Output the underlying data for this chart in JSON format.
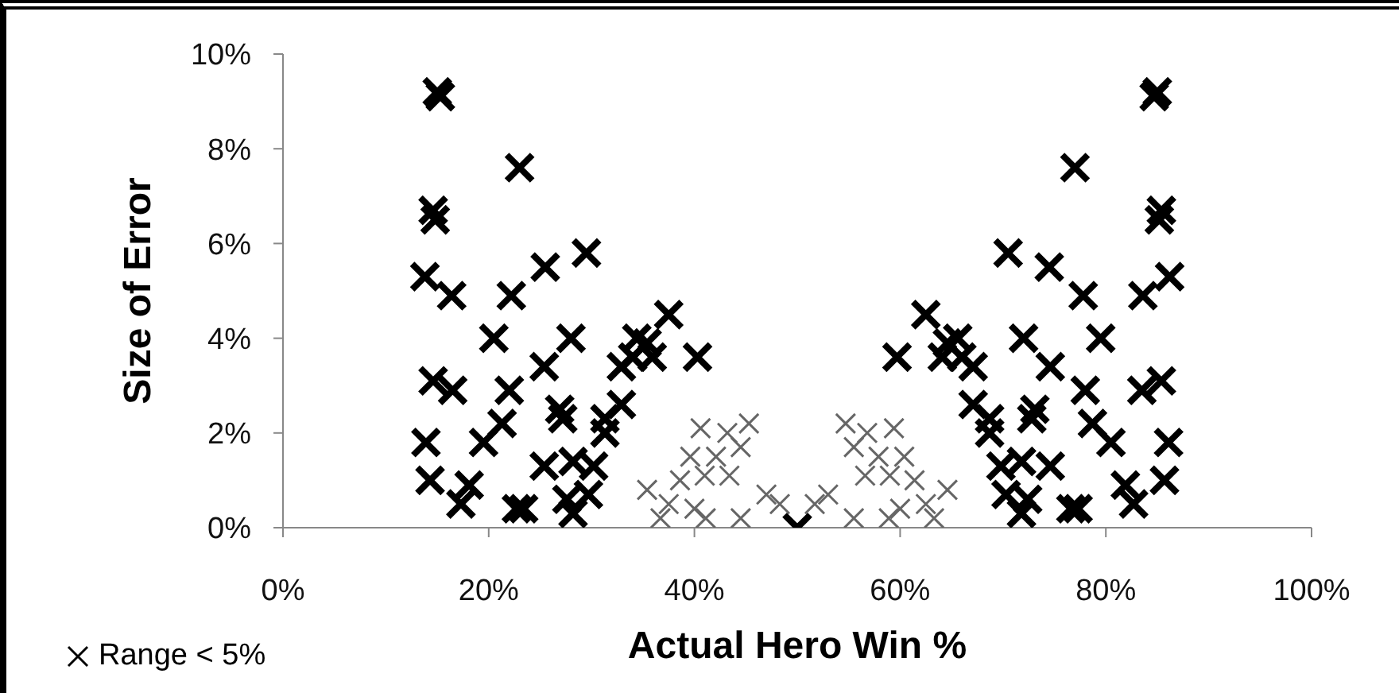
{
  "chart_data": {
    "type": "scatter",
    "xlabel": "Actual Hero Win %",
    "ylabel": "Size of Error",
    "xlim": [
      0,
      100
    ],
    "ylim": [
      0,
      10
    ],
    "xticks": [
      {
        "value": 0,
        "label": "0%"
      },
      {
        "value": 20,
        "label": "20%"
      },
      {
        "value": 40,
        "label": "40%"
      },
      {
        "value": 60,
        "label": "60%"
      },
      {
        "value": 80,
        "label": "80%"
      },
      {
        "value": 100,
        "label": "100%"
      }
    ],
    "yticks": [
      {
        "value": 0,
        "label": "0%"
      },
      {
        "value": 2,
        "label": "2%"
      },
      {
        "value": 4,
        "label": "4%"
      },
      {
        "value": 6,
        "label": "6%"
      },
      {
        "value": 8,
        "label": "8%"
      },
      {
        "value": 10,
        "label": "10%"
      }
    ],
    "grid": false,
    "legend": "bottom left",
    "marker": "cross",
    "series": [
      {
        "color": "#666666",
        "x": [
          40.6,
          43.2,
          45.3,
          39.6,
          42.1,
          44.5,
          38.6,
          41,
          43.4,
          35.4,
          37.5,
          40,
          47,
          48.3,
          36.7,
          41.1,
          44.5,
          59.4,
          56.8,
          54.7,
          60.4,
          57.9,
          55.5,
          61.4,
          59,
          56.6,
          64.6,
          62.5,
          60,
          53,
          51.7,
          63.3,
          58.9,
          55.5
        ],
        "values": [
          2.1,
          2.0,
          2.2,
          1.5,
          1.5,
          1.7,
          1.0,
          1.1,
          1.1,
          0.8,
          0.5,
          0.4,
          0.7,
          0.5,
          0.2,
          0.2,
          0.2,
          2.1,
          2.0,
          2.2,
          1.5,
          1.5,
          1.7,
          1.0,
          1.1,
          1.1,
          0.8,
          0.5,
          0.4,
          0.7,
          0.5,
          0.2,
          0.2,
          0.2
        ]
      },
      {
        "name": "Range < 5%",
        "color": "#000000",
        "x": [
          15,
          15.3,
          23,
          14.6,
          14.8,
          13.8,
          16.4,
          22.2,
          25.5,
          29.5,
          20.5,
          28,
          14.6,
          16.5,
          22,
          25.4,
          32.9,
          34.4,
          35.4,
          21.3,
          26.9,
          27.2,
          31.3,
          32.9,
          13.9,
          19.5,
          14.3,
          18.1,
          17.3,
          22.7,
          23.4,
          25.4,
          28.2,
          30.2,
          27.6,
          28.2,
          29.7,
          31.3,
          37.5,
          40.3,
          35.9,
          34,
          50,
          85,
          84.7,
          77,
          85.4,
          85.2,
          86.2,
          83.6,
          77.8,
          74.5,
          70.5,
          79.5,
          72,
          85.4,
          83.5,
          78,
          74.6,
          67.1,
          65.6,
          64.6,
          78.7,
          73.1,
          72.8,
          68.7,
          67.1,
          86.1,
          80.5,
          85.7,
          81.9,
          82.7,
          77.3,
          76.6,
          74.6,
          71.8,
          69.8,
          72.4,
          71.8,
          70.3,
          68.7,
          62.5,
          59.7,
          64.1,
          66
        ],
        "values": [
          9.2,
          9.1,
          7.6,
          6.7,
          6.5,
          5.3,
          4.9,
          4.9,
          5.5,
          5.8,
          4.0,
          4.0,
          3.1,
          2.9,
          2.9,
          3.4,
          3.4,
          4.0,
          3.9,
          2.2,
          2.5,
          2.3,
          2.3,
          2.6,
          1.8,
          1.8,
          1.0,
          0.9,
          0.5,
          0.4,
          0.4,
          1.3,
          1.4,
          1.3,
          0.6,
          0.3,
          0.7,
          2.0,
          4.5,
          3.6,
          3.6,
          3.6,
          0,
          9.2,
          9.1,
          7.6,
          6.7,
          6.5,
          5.3,
          4.9,
          4.9,
          5.5,
          5.8,
          4.0,
          4.0,
          3.1,
          2.9,
          2.9,
          3.4,
          3.4,
          4.0,
          3.9,
          2.2,
          2.5,
          2.3,
          2.3,
          2.6,
          1.8,
          1.8,
          1.0,
          0.9,
          0.5,
          0.4,
          0.4,
          1.3,
          1.4,
          1.3,
          0.6,
          0.3,
          0.7,
          2.0,
          4.5,
          3.6,
          3.6,
          3.6
        ]
      }
    ]
  }
}
